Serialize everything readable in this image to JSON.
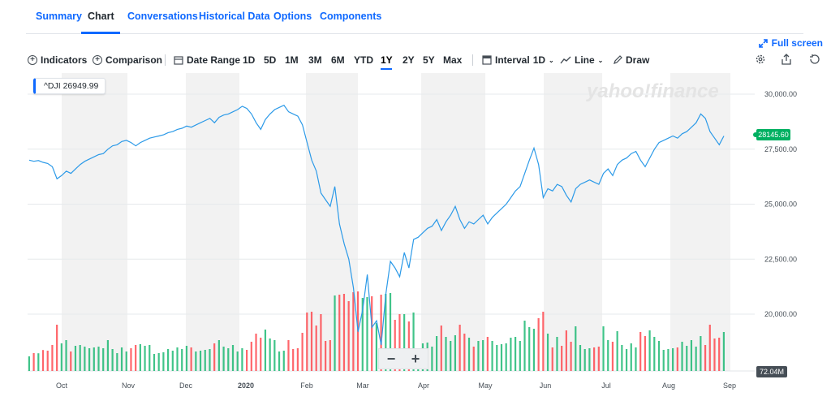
{
  "tabs": [
    {
      "label": "Summary",
      "active": false
    },
    {
      "label": "Chart",
      "active": true
    },
    {
      "label": "Conversations",
      "active": false
    },
    {
      "label": "Historical Data",
      "active": false
    },
    {
      "label": "Options",
      "active": false
    },
    {
      "label": "Components",
      "active": false
    }
  ],
  "fullscreen_label": "Full screen",
  "toolbar": {
    "indicators": "Indicators",
    "comparison": "Comparison",
    "date_range": "Date Range",
    "ranges": [
      "1D",
      "5D",
      "1M",
      "3M",
      "6M",
      "YTD",
      "1Y",
      "2Y",
      "5Y",
      "Max"
    ],
    "selected_range": "1Y",
    "interval_label": "Interval",
    "interval_value": "1D",
    "chart_type": "Line",
    "draw": "Draw"
  },
  "icons": [
    "settings-icon",
    "share-icon",
    "reset-icon",
    "expand-icon",
    "plus-circle-icon",
    "calendar-icon",
    "candle-icon",
    "line-chart-icon",
    "pencil-icon"
  ],
  "watermark": "yahoo!finance",
  "symbol_label": "^DJI 26949.99",
  "last_price_badge": "28145.60",
  "volume_badge": "72.04M",
  "zoom": {
    "minus": "−",
    "plus": "+"
  },
  "colors": {
    "accent": "#0f69ff",
    "line": "#2c9ae8",
    "up": "#00b061",
    "down": "#ff333a",
    "band": "#f2f2f2"
  },
  "chart_data": {
    "type": "line",
    "symbol": "^DJI",
    "ylim": [
      18150,
      31000
    ],
    "yticks": [
      "30,000.00",
      "27,500.00",
      "25,000.00",
      "22,500.00",
      "20,000.00"
    ],
    "ytick_values": [
      30000,
      27500,
      25000,
      22500,
      20000
    ],
    "x_labels": [
      "Oct",
      "Nov",
      "Dec",
      "2020",
      "Feb",
      "Mar",
      "Apr",
      "May",
      "Jun",
      "Jul",
      "Aug",
      "Sep"
    ],
    "series": [
      {
        "values": [
          27000,
          26950,
          26980,
          26900,
          26850,
          26700,
          26150,
          26300,
          26500,
          26400,
          26600,
          26800,
          26950,
          27050,
          27150,
          27250,
          27300,
          27500,
          27650,
          27700,
          27850,
          27900,
          27800,
          27650,
          27800,
          27900,
          28000,
          28050,
          28100,
          28150,
          28250,
          28300,
          28400,
          28450,
          28550,
          28500,
          28600,
          28700,
          28800,
          28900,
          28700,
          28950,
          29050,
          29100,
          29200,
          29300,
          29450,
          29350,
          29100,
          28700,
          28400,
          28850,
          29100,
          29300,
          29400,
          29500,
          29200,
          29100,
          29000,
          28600,
          27800,
          27000,
          26500,
          25500,
          25200,
          24900,
          25800,
          24100,
          23200,
          22500,
          21200,
          19200,
          20200,
          21800,
          19400,
          19700,
          18600,
          20900,
          22400,
          22100,
          21700,
          22800,
          22100,
          23400,
          23500,
          23700,
          23900,
          24000,
          24300,
          23800,
          24200,
          24500,
          24900,
          24300,
          23900,
          24200,
          24100,
          24300,
          24500,
          24100,
          24400,
          24600,
          24800,
          25000,
          25300,
          25600,
          25800,
          26400,
          27000,
          27550,
          26800,
          25300,
          25700,
          25600,
          25900,
          25800,
          25400,
          25100,
          25700,
          25900,
          26000,
          26100,
          26000,
          25900,
          26400,
          26600,
          26300,
          26800,
          27000,
          27100,
          27300,
          27400,
          27000,
          26700,
          27100,
          27500,
          27800,
          27900,
          28000,
          28100,
          28000,
          28200,
          28300,
          28500,
          28700,
          29100,
          28900,
          28300,
          28000,
          27700,
          28100
        ]
      }
    ],
    "volume_up_color": "#00b061",
    "volume_down_color": "#ff333a"
  }
}
